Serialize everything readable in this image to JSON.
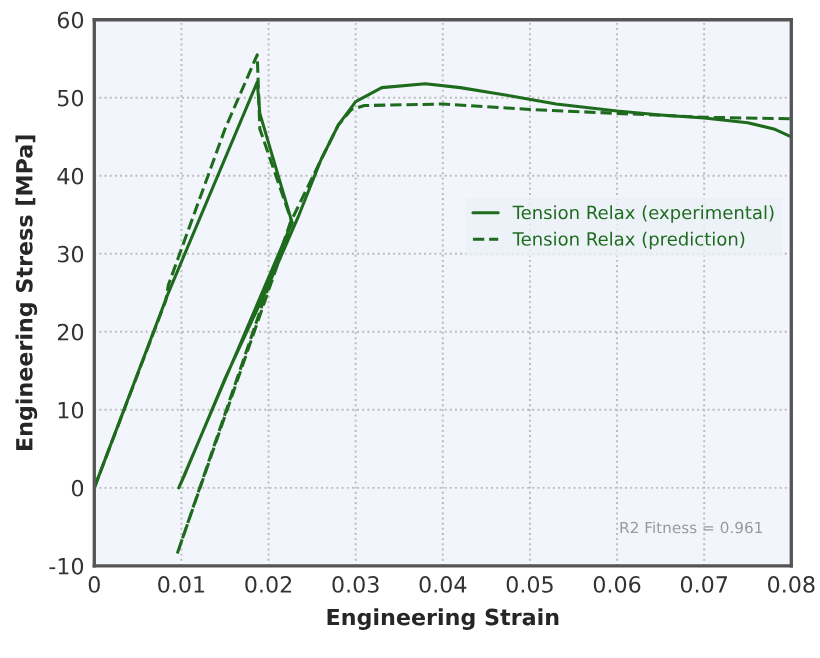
{
  "chart_data": {
    "type": "line",
    "xlabel": "Engineering Strain",
    "ylabel": "Engineering Stress [MPa]",
    "xlim": [
      0,
      0.08
    ],
    "ylim": [
      -10,
      60
    ],
    "xticks": [
      0,
      0.01,
      0.02,
      0.03,
      0.04,
      0.05,
      0.06,
      0.07,
      0.08
    ],
    "yticks": [
      -10,
      0,
      10,
      20,
      30,
      40,
      50,
      60
    ],
    "grid": true,
    "legend": "right",
    "marker": "none",
    "annotations": [
      "R2 Fitness = 0.961"
    ],
    "series": [
      {
        "name": "Tension Relax (experimental)",
        "color": "#1e6b1e",
        "line_style": "solid",
        "x": [
          0,
          0.0085,
          0.0187,
          0.019,
          0.0227,
          0.0097,
          0.0105,
          0.015,
          0.02,
          0.0235,
          0.026,
          0.028,
          0.03,
          0.033,
          0.038,
          0.042,
          0.048,
          0.053,
          0.06,
          0.065,
          0.07,
          0.075,
          0.078,
          0.08
        ],
        "values": [
          0,
          25,
          52,
          48,
          34,
          0,
          2,
          14,
          26,
          35,
          42,
          46.5,
          49.5,
          51.3,
          51.8,
          51.3,
          50.2,
          49.2,
          48.3,
          47.8,
          47.4,
          46.8,
          46,
          45
        ]
      },
      {
        "name": "Tension Relax (prediction)",
        "color": "#1e6b1e",
        "line_style": "dashed",
        "x": [
          0,
          0.0082,
          0.0085,
          0.015,
          0.0187,
          0.019,
          0.0227,
          0.0095,
          0.0225,
          0.026,
          0.028,
          0.0295,
          0.031,
          0.04,
          0.05,
          0.06,
          0.07,
          0.08
        ],
        "values": [
          0,
          24,
          26,
          46,
          55.5,
          46,
          34,
          -8.5,
          34,
          42,
          46.5,
          48.5,
          49,
          49.2,
          48.5,
          48,
          47.5,
          47.3
        ]
      }
    ]
  }
}
